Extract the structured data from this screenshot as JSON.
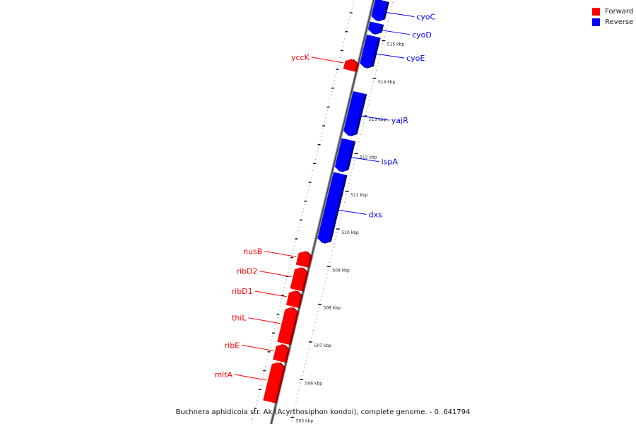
{
  "caption": "Buchnera aphidicola str. Ak (Acyrthosiphon kondoi), complete genome. - 0..641794",
  "legend": {
    "forward": {
      "label": "Forward",
      "color": "#ff0000"
    },
    "reverse": {
      "label": "Reverse",
      "color": "#0000ff"
    }
  },
  "ticks": [
    {
      "kbp": 505,
      "label": "505 kbp"
    },
    {
      "kbp": 506,
      "label": "506 kbp"
    },
    {
      "kbp": 507,
      "label": "507 kbp"
    },
    {
      "kbp": 508,
      "label": "508 kbp"
    },
    {
      "kbp": 509,
      "label": "509 kbp"
    },
    {
      "kbp": 510,
      "label": "510 kbp"
    },
    {
      "kbp": 511,
      "label": "511 kbp"
    },
    {
      "kbp": 512,
      "label": "512 kbp"
    },
    {
      "kbp": 513,
      "label": "513 kbp"
    },
    {
      "kbp": 514,
      "label": "514 kbp"
    },
    {
      "kbp": 515,
      "label": "515 kbp"
    }
  ],
  "genes": [
    {
      "name": "mltA",
      "strand": "forward",
      "start": 505.25,
      "end": 506.3
    },
    {
      "name": "ribE",
      "strand": "forward",
      "start": 506.33,
      "end": 506.78
    },
    {
      "name": "thiL",
      "strand": "forward",
      "start": 506.8,
      "end": 507.76
    },
    {
      "name": "ribD1",
      "strand": "forward",
      "start": 507.78,
      "end": 508.2
    },
    {
      "name": "ribD2",
      "strand": "forward",
      "start": 508.22,
      "end": 508.82
    },
    {
      "name": "nusB",
      "strand": "forward",
      "start": 508.85,
      "end": 509.25
    },
    {
      "name": "dxs",
      "strand": "reverse",
      "start": 509.55,
      "end": 511.4
    },
    {
      "name": "ispA",
      "strand": "reverse",
      "start": 511.45,
      "end": 512.3
    },
    {
      "name": "yajR",
      "strand": "reverse",
      "start": 512.4,
      "end": 513.55
    },
    {
      "name": "yccK",
      "strand": "forward",
      "start": 514.05,
      "end": 514.35
    },
    {
      "name": "cyoE",
      "strand": "reverse",
      "start": 514.2,
      "end": 515.05
    },
    {
      "name": "cyoD",
      "strand": "reverse",
      "start": 515.1,
      "end": 515.4
    },
    {
      "name": "cyoC",
      "strand": "reverse",
      "start": 515.45,
      "end": 516.0
    }
  ]
}
